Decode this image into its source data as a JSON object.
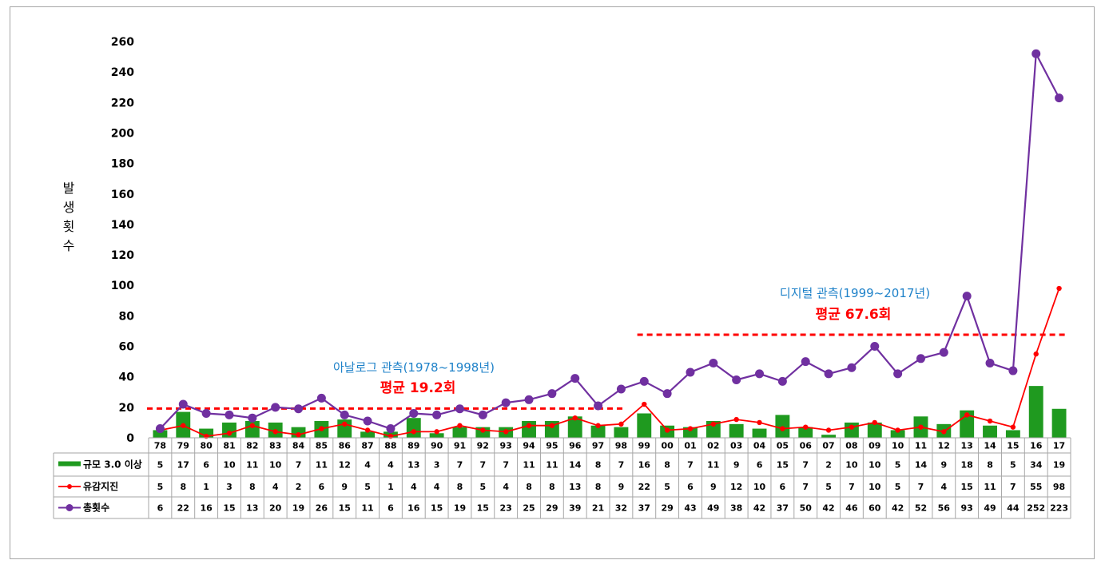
{
  "chart_data": {
    "type": "bar",
    "ylabel": "발생횟수",
    "ylim": [
      0,
      260
    ],
    "yticks": [
      0,
      20,
      40,
      60,
      80,
      100,
      120,
      140,
      160,
      180,
      200,
      220,
      240,
      260
    ],
    "grid": false,
    "legend_placement": "table-left",
    "categories": [
      "78",
      "79",
      "80",
      "81",
      "82",
      "83",
      "84",
      "85",
      "86",
      "87",
      "88",
      "89",
      "90",
      "91",
      "92",
      "93",
      "94",
      "95",
      "96",
      "97",
      "98",
      "99",
      "00",
      "01",
      "02",
      "03",
      "04",
      "05",
      "06",
      "07",
      "08",
      "09",
      "10",
      "11",
      "12",
      "13",
      "14",
      "15",
      "16",
      "17"
    ],
    "series": [
      {
        "name": "규모 3.0 이상",
        "kind": "bar",
        "color": "#1f9a1f",
        "values": [
          5,
          17,
          6,
          10,
          11,
          10,
          7,
          11,
          12,
          4,
          4,
          13,
          3,
          7,
          7,
          7,
          11,
          11,
          14,
          8,
          7,
          16,
          8,
          7,
          11,
          9,
          6,
          15,
          7,
          2,
          10,
          10,
          5,
          14,
          9,
          18,
          8,
          5,
          34,
          19
        ]
      },
      {
        "name": "유감지진",
        "kind": "line",
        "color": "#ff0000",
        "values": [
          5,
          8,
          1,
          3,
          8,
          4,
          2,
          6,
          9,
          5,
          1,
          4,
          4,
          8,
          5,
          4,
          8,
          8,
          13,
          8,
          9,
          22,
          5,
          6,
          9,
          12,
          10,
          6,
          7,
          5,
          7,
          10,
          5,
          7,
          4,
          15,
          11,
          7,
          55,
          98
        ]
      },
      {
        "name": "총횟수",
        "kind": "line",
        "color": "#7030a0",
        "values": [
          6,
          22,
          16,
          15,
          13,
          20,
          19,
          26,
          15,
          11,
          6,
          16,
          15,
          19,
          15,
          23,
          25,
          29,
          39,
          21,
          32,
          37,
          29,
          43,
          49,
          38,
          42,
          37,
          50,
          42,
          46,
          60,
          42,
          52,
          56,
          93,
          49,
          44,
          252,
          223
        ]
      }
    ],
    "annotations": [
      {
        "id": "analog",
        "label": "아날로그 관측(1978~1998년)",
        "avg_label": "평균 19.2회",
        "avg_value": 19.2,
        "range": [
          "78",
          "98"
        ]
      },
      {
        "id": "digital",
        "label": "디지털 관측(1999~2017년)",
        "avg_label": "평균 67.6회",
        "avg_value": 67.6,
        "range": [
          "99",
          "17"
        ]
      }
    ]
  }
}
